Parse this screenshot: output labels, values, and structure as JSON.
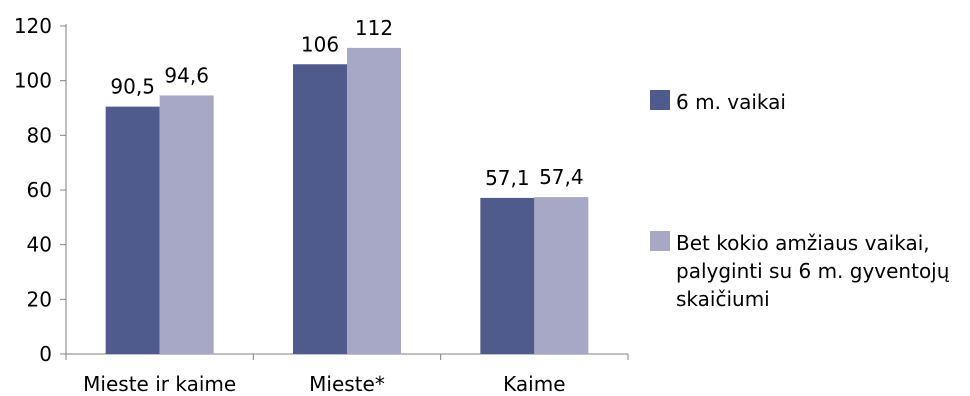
{
  "chart_data": {
    "type": "bar",
    "categories": [
      "Mieste ir kaime",
      "Mieste*",
      "Kaime"
    ],
    "series": [
      {
        "name": "6 m. vaikai",
        "color": "#4f5b8c",
        "values": [
          90.5,
          106,
          57.1
        ],
        "labels": [
          "90,5",
          "106",
          "57,1"
        ]
      },
      {
        "name": "Bet kokio amžiaus vaikai,\npalyginti su 6 m. gyventojų\nskaičiumi",
        "color": "#a6a8c6",
        "values": [
          94.6,
          112,
          57.4
        ],
        "labels": [
          "94,6",
          "112",
          "57,4"
        ]
      }
    ],
    "ylim": [
      0,
      120
    ],
    "yticks": [
      0,
      20,
      40,
      60,
      80,
      100,
      120
    ],
    "grid": false,
    "legend_position": "right"
  }
}
